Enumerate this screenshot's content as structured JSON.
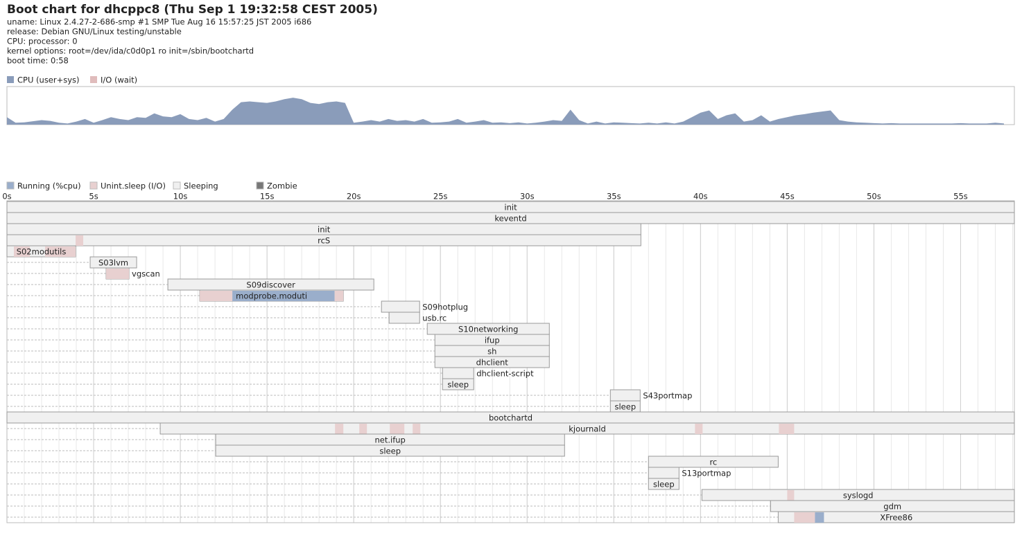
{
  "header": {
    "title": "Boot chart for dhcppc8 (Thu Sep  1 19:32:58 CEST 2005)",
    "lines": [
      "uname: Linux 2.4.27-2-686-smp #1 SMP Tue Aug 16 15:57:25 JST 2005 i686",
      "release: Debian GNU/Linux testing/unstable",
      "CPU: processor: 0",
      "kernel options: root=/dev/ida/c0d0p1 ro init=/sbin/bootchartd",
      "boot time: 0:58"
    ]
  },
  "chart_data": [
    {
      "type": "area",
      "xlim": [
        0,
        58.1
      ],
      "ylim": [
        0,
        100
      ],
      "x": [
        0,
        0.5,
        1,
        1.5,
        2,
        2.5,
        3,
        3.5,
        4,
        4.5,
        5,
        5.5,
        6,
        6.5,
        7,
        7.5,
        8,
        8.5,
        9,
        9.5,
        10,
        10.5,
        11,
        11.5,
        12,
        12.5,
        13,
        13.5,
        14,
        14.5,
        15,
        15.5,
        16,
        16.5,
        17,
        17.5,
        18,
        18.5,
        19,
        19.5,
        20,
        20.5,
        21,
        21.5,
        22,
        22.5,
        23,
        23.5,
        24,
        24.5,
        25,
        25.5,
        26,
        26.5,
        27,
        27.5,
        28,
        28.5,
        29,
        29.5,
        30,
        30.5,
        31,
        31.5,
        32,
        32.5,
        33,
        33.5,
        34,
        34.5,
        35,
        35.5,
        36,
        36.5,
        37,
        37.5,
        38,
        38.5,
        39,
        39.5,
        40,
        40.5,
        41,
        41.5,
        42,
        42.5,
        43,
        43.5,
        44,
        44.5,
        45,
        45.5,
        46,
        46.5,
        47,
        47.5,
        48,
        48.5,
        49,
        49.5,
        50,
        50.5,
        51,
        51.5,
        52,
        52.5,
        53,
        53.5,
        54,
        54.5,
        55,
        55.5,
        56,
        56.5,
        57,
        57.5
      ],
      "series": [
        {
          "name": "CPU (user+sys)",
          "color": "#8a9cba",
          "values": [
            20,
            5,
            6,
            9,
            12,
            10,
            5,
            3,
            8,
            15,
            5,
            12,
            20,
            15,
            12,
            20,
            18,
            30,
            22,
            20,
            28,
            15,
            12,
            18,
            8,
            15,
            40,
            60,
            62,
            60,
            58,
            62,
            68,
            72,
            68,
            58,
            55,
            60,
            62,
            58,
            5,
            8,
            12,
            8,
            15,
            10,
            12,
            8,
            15,
            5,
            6,
            8,
            15,
            5,
            8,
            12,
            5,
            6,
            4,
            6,
            3,
            5,
            8,
            12,
            10,
            40,
            12,
            3,
            8,
            3,
            6,
            5,
            4,
            3,
            5,
            3,
            6,
            3,
            8,
            20,
            32,
            38,
            15,
            25,
            30,
            8,
            12,
            25,
            8,
            15,
            20,
            25,
            28,
            32,
            35,
            38,
            12,
            8,
            6,
            5,
            4,
            3,
            4,
            3,
            3,
            3,
            3,
            3,
            3,
            3,
            4,
            3,
            3,
            3,
            5,
            3
          ]
        },
        {
          "name": "I/O (wait)",
          "color": "#e0bcbc",
          "values": [
            0,
            0,
            0,
            0,
            0,
            0,
            0,
            0,
            0,
            0,
            0,
            0,
            0,
            0,
            0,
            0,
            0,
            0,
            0,
            0,
            0,
            0,
            0,
            0,
            0,
            0,
            0,
            0,
            0,
            0,
            0,
            0,
            0,
            0,
            0,
            0,
            0,
            0,
            0,
            0,
            0,
            0,
            0,
            0,
            0,
            0,
            0,
            0,
            0,
            0,
            0,
            0,
            0,
            0,
            0,
            0,
            0,
            0,
            0,
            0,
            0,
            0,
            0,
            0,
            0,
            0,
            0,
            0,
            0,
            0,
            0,
            0,
            0,
            0,
            0,
            0,
            0,
            0,
            0,
            0,
            0,
            0,
            0,
            0,
            0,
            0,
            0,
            0,
            0,
            0,
            0,
            0,
            0,
            0,
            0,
            0,
            0,
            0,
            0,
            0,
            0,
            0,
            0,
            0,
            0,
            0,
            0,
            0,
            0,
            0,
            0,
            0,
            0,
            0,
            0,
            0
          ]
        }
      ]
    },
    {
      "type": "gantt",
      "xlim": [
        0,
        58.1
      ],
      "minor_step": 1,
      "xticks": [
        {
          "value": 0,
          "label": "0s"
        },
        {
          "value": 5,
          "label": "5s"
        },
        {
          "value": 10,
          "label": "10s"
        },
        {
          "value": 15,
          "label": "15s"
        },
        {
          "value": 20,
          "label": "20s"
        },
        {
          "value": 25,
          "label": "25s"
        },
        {
          "value": 30,
          "label": "30s"
        },
        {
          "value": 35,
          "label": "35s"
        },
        {
          "value": 40,
          "label": "40s"
        },
        {
          "value": 45,
          "label": "45s"
        },
        {
          "value": 50,
          "label": "50s"
        },
        {
          "value": 55,
          "label": "55s"
        }
      ],
      "legend": [
        {
          "name": "Running (%cpu)",
          "color": "#9aaecb"
        },
        {
          "name": "Unint.sleep (I/O)",
          "color": "#e8d0d0"
        },
        {
          "name": "Sleeping",
          "color": "#f0f0f0"
        },
        {
          "name": "Zombie",
          "color": "#777777"
        }
      ],
      "processes": [
        {
          "name": "init",
          "start": 0,
          "end": 58.1
        },
        {
          "name": "keventd",
          "start": 0,
          "end": 58.1
        },
        {
          "name": "init",
          "start": 0,
          "end": 36.56
        },
        {
          "name": "rcS",
          "start": 0,
          "end": 36.56,
          "segments": [
            {
              "start": 3.96,
              "end": 4.4,
              "state": 1
            }
          ]
        },
        {
          "name": "S02modutils",
          "start": 0,
          "end": 3.96,
          "segments": [
            {
              "start": 0.4,
              "end": 1.32,
              "state": 1
            },
            {
              "start": 2.2,
              "end": 3.96,
              "state": 1
            }
          ]
        },
        {
          "name": "S03lvm",
          "start": 4.8,
          "end": 7.48
        },
        {
          "name": "vgscan",
          "start": 5.72,
          "end": 7.04,
          "segments": [
            {
              "start": 5.72,
              "end": 7.04,
              "state": 1
            }
          ]
        },
        {
          "name": "S09discover",
          "start": 9.28,
          "end": 21.16
        },
        {
          "name": "modprobe.moduti",
          "start": 11.12,
          "end": 19.4,
          "segments": [
            {
              "start": 11.12,
              "end": 13.0,
              "state": 1
            },
            {
              "start": 13.0,
              "end": 18.9,
              "state": 0
            },
            {
              "start": 18.9,
              "end": 19.4,
              "state": 1
            }
          ]
        },
        {
          "name": "S09hotplug",
          "start": 21.6,
          "end": 23.8
        },
        {
          "name": "usb.rc",
          "start": 22.04,
          "end": 23.8
        },
        {
          "name": "S10networking",
          "start": 24.24,
          "end": 31.28
        },
        {
          "name": "ifup",
          "start": 24.68,
          "end": 31.28
        },
        {
          "name": "sh",
          "start": 24.68,
          "end": 31.28
        },
        {
          "name": "dhclient",
          "start": 24.68,
          "end": 31.28
        },
        {
          "name": "dhclient-script",
          "start": 25.12,
          "end": 26.92
        },
        {
          "name": "sleep",
          "start": 25.12,
          "end": 26.92
        },
        {
          "name": "S43portmap",
          "start": 34.8,
          "end": 36.52
        },
        {
          "name": "sleep",
          "start": 34.8,
          "end": 36.52
        },
        {
          "name": "bootchartd",
          "start": 0,
          "end": 58.1
        },
        {
          "name": "kjournald",
          "start": 8.84,
          "end": 58.1,
          "segments": [
            {
              "start": 18.92,
              "end": 19.4,
              "state": 1
            },
            {
              "start": 20.32,
              "end": 20.76,
              "state": 1
            },
            {
              "start": 22.08,
              "end": 22.92,
              "state": 1
            },
            {
              "start": 23.4,
              "end": 23.84,
              "state": 1
            },
            {
              "start": 39.68,
              "end": 40.12,
              "state": 1
            },
            {
              "start": 44.52,
              "end": 45.4,
              "state": 1
            }
          ]
        },
        {
          "name": "net.ifup",
          "start": 12.04,
          "end": 32.16
        },
        {
          "name": "sleep",
          "start": 12.04,
          "end": 32.16
        },
        {
          "name": "rc",
          "start": 37.0,
          "end": 44.48
        },
        {
          "name": "S13portmap",
          "start": 37.0,
          "end": 38.76
        },
        {
          "name": "sleep",
          "start": 37.0,
          "end": 38.76
        },
        {
          "name": "syslogd",
          "start": 40.08,
          "end": 58.1,
          "segments": [
            {
              "start": 45.0,
              "end": 45.4,
              "state": 1
            }
          ]
        },
        {
          "name": "gdm",
          "start": 44.04,
          "end": 58.1
        },
        {
          "name": "XFree86",
          "start": 44.48,
          "end": 58.1,
          "segments": [
            {
              "start": 45.4,
              "end": 46.6,
              "state": 1
            },
            {
              "start": 46.6,
              "end": 47.12,
              "state": 0
            }
          ]
        }
      ]
    }
  ]
}
